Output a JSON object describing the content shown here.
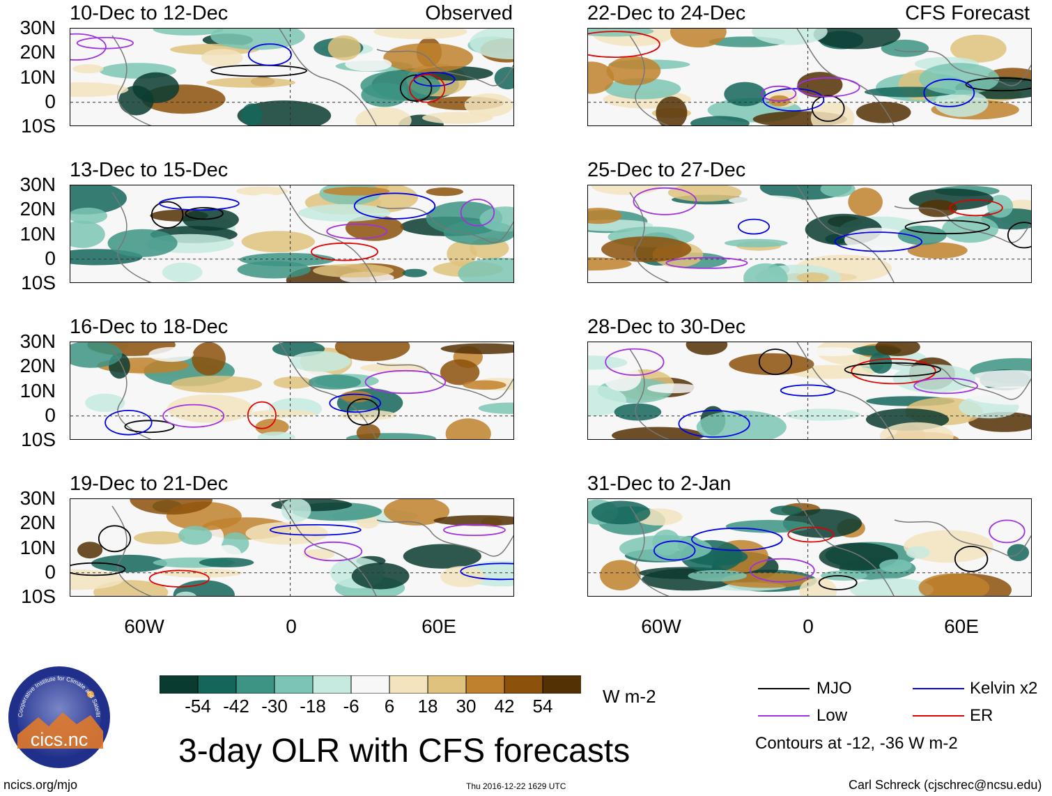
{
  "headings": {
    "observed": "Observed",
    "forecast": "CFS Forecast"
  },
  "panels": [
    {
      "title": "10-Dec to 12-Dec",
      "column": "observed"
    },
    {
      "title": "13-Dec to 15-Dec",
      "column": "observed"
    },
    {
      "title": "16-Dec to 18-Dec",
      "column": "observed"
    },
    {
      "title": "19-Dec to 21-Dec",
      "column": "observed"
    },
    {
      "title": "22-Dec to 24-Dec",
      "column": "forecast"
    },
    {
      "title": "25-Dec to 27-Dec",
      "column": "forecast"
    },
    {
      "title": "28-Dec to 30-Dec",
      "column": "forecast"
    },
    {
      "title": "31-Dec to 2-Jan",
      "column": "forecast"
    }
  ],
  "lat_labels": [
    "30N",
    "20N",
    "10N",
    "0",
    "10S"
  ],
  "lon_labels": [
    "60W",
    "0",
    "60E"
  ],
  "colorbar": {
    "labels": [
      "-54",
      "-42",
      "-30",
      "-18",
      "-6",
      "6",
      "18",
      "30",
      "42",
      "54"
    ],
    "colors": [
      "#0a3b30",
      "#14665a",
      "#3d9484",
      "#7cc5b4",
      "#c6eae0",
      "#f7f7f7",
      "#f3e4be",
      "#dfc27d",
      "#bf812d",
      "#8c510a",
      "#543005"
    ],
    "units": "W m-2"
  },
  "legend": {
    "items": [
      {
        "label": "MJO",
        "color": "#000000"
      },
      {
        "label": "Kelvin x2",
        "color": "#0000e6"
      },
      {
        "label": "Low",
        "color": "#a030e0"
      },
      {
        "label": "ER",
        "color": "#e00000"
      }
    ],
    "note": "Contours at -12, -36 W m-2"
  },
  "main_title": "3-day OLR with CFS forecasts",
  "logo_text": "cics.nc",
  "logo_ring_text": "Cooperative Institute for Climate and Satellites",
  "footer": {
    "url": "ncics.org/mjo",
    "timestamp": "Thu 2016-12-22 1629 UTC",
    "credit": "Carl Schreck (cjschrec@ncsu.edu)"
  }
}
